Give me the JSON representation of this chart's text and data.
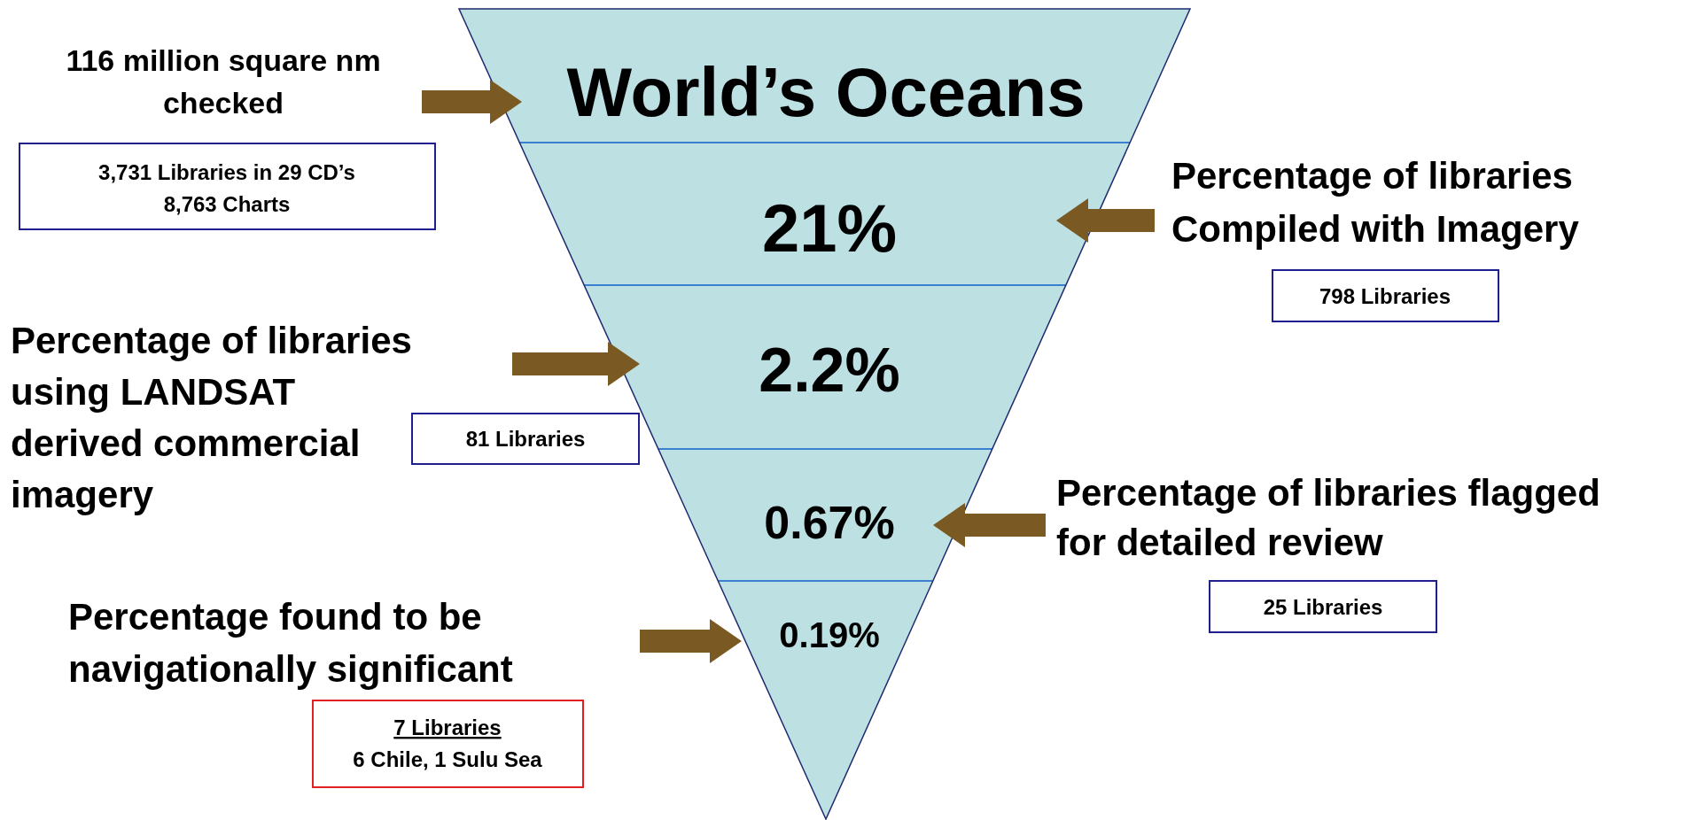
{
  "chart_data": {
    "type": "other",
    "title": "World’s Oceans",
    "categories": [
      null,
      null,
      null,
      null
    ],
    "values": [
      21,
      2.2,
      0.67,
      0.19
    ],
    "value_labels": [
      "21%",
      "2.2%",
      "0.67%",
      "0.19%"
    ],
    "color": "#bde0e3",
    "annotations": [
      "116 million square nm\nchecked",
      "3,731 Libraries in 29 CD’s\n8,763 Charts",
      "Percentage of libraries\nCompiled with Imagery",
      "798 Libraries",
      "Percentage of libraries\nusing LANDSAT\nderived commercial\nimagery",
      "81 Libraries",
      "Percentage of libraries flagged\nfor detailed review",
      "25 Libraries",
      "Percentage found to be\nnavigationally significant",
      "7 Libraries",
      "6 Chile, 1 Sulu Sea"
    ]
  }
}
